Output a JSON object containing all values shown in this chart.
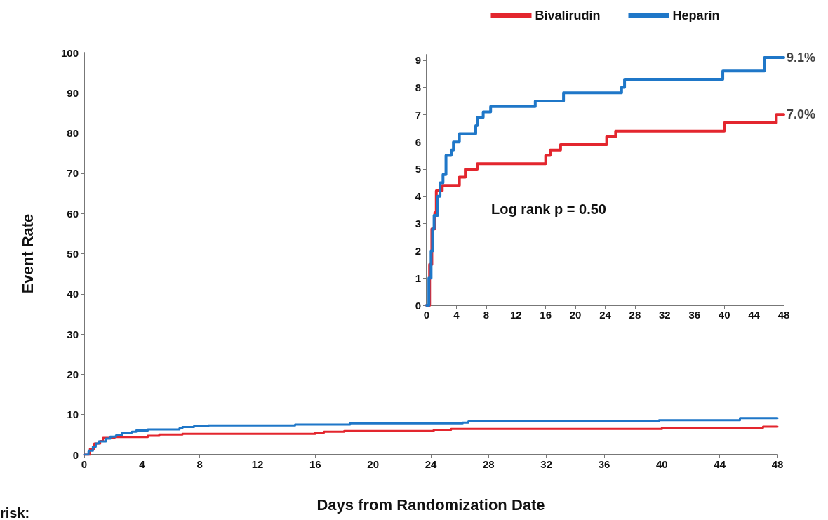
{
  "chart_data": [
    {
      "type": "step",
      "xlabel": "Days from Randomization Date",
      "ylabel": "Event Rate",
      "xlim": [
        0,
        48
      ],
      "xticks": [
        0,
        4,
        8,
        12,
        16,
        20,
        24,
        28,
        32,
        36,
        40,
        44,
        48
      ],
      "ylim": [
        0,
        100
      ],
      "yticks": [
        0,
        10,
        20,
        30,
        40,
        50,
        60,
        70,
        80,
        90,
        100
      ],
      "grid": false,
      "legend": false,
      "marker": "none",
      "line_style": "solid",
      "series": [
        {
          "color": "#e3262e",
          "x": [
            0,
            0.4,
            0.7,
            1.1,
            1.3,
            2.1,
            4.4,
            5.2,
            6.8,
            16.0,
            16.6,
            18.0,
            24.2,
            25.4,
            40.0,
            47.0,
            48
          ],
          "values": [
            0,
            1.5,
            2.8,
            3.4,
            4.2,
            4.4,
            4.7,
            5.0,
            5.2,
            5.5,
            5.7,
            5.9,
            6.2,
            6.4,
            6.7,
            7.0,
            7.0
          ]
        },
        {
          "color": "#1f77c8",
          "x": [
            0,
            0.3,
            0.6,
            0.8,
            1.0,
            1.5,
            1.8,
            2.2,
            2.6,
            3.3,
            3.6,
            4.4,
            6.6,
            6.8,
            7.6,
            8.6,
            14.6,
            18.4,
            26.2,
            26.6,
            39.8,
            45.4,
            48
          ],
          "values": [
            0,
            1,
            2,
            2.8,
            3.3,
            4,
            4.5,
            4.8,
            5.5,
            5.7,
            6.0,
            6.3,
            6.6,
            6.9,
            7.1,
            7.3,
            7.5,
            7.8,
            8.0,
            8.3,
            8.6,
            9.1,
            9.1
          ]
        }
      ],
      "annotations": [
        "risk:"
      ]
    },
    {
      "type": "step",
      "xlim": [
        0,
        48
      ],
      "xticks": [
        0,
        4,
        8,
        12,
        16,
        20,
        24,
        28,
        32,
        36,
        40,
        44,
        48
      ],
      "ylim": [
        0,
        9.2
      ],
      "yticks": [
        0,
        1,
        2,
        3,
        4,
        5,
        6,
        7,
        8,
        9
      ],
      "grid": false,
      "legend": "top",
      "marker": "none",
      "line_style": "solid",
      "series": [
        {
          "name": "Bivalirudin",
          "color": "#e3262e",
          "x": [
            0,
            0.4,
            0.7,
            1.1,
            1.3,
            2.1,
            4.4,
            5.2,
            6.8,
            16.0,
            16.6,
            18.0,
            24.2,
            25.4,
            40.0,
            47.0,
            48
          ],
          "values": [
            0,
            1.5,
            2.8,
            3.4,
            4.2,
            4.4,
            4.7,
            5.0,
            5.2,
            5.5,
            5.7,
            5.9,
            6.2,
            6.4,
            6.7,
            7.0,
            7.0
          ]
        },
        {
          "name": "Heparin",
          "color": "#1f77c8",
          "x": [
            0,
            0.3,
            0.6,
            0.8,
            1.0,
            1.5,
            1.8,
            2.2,
            2.6,
            3.3,
            3.6,
            4.4,
            6.6,
            6.8,
            7.6,
            8.6,
            14.6,
            18.4,
            26.2,
            26.6,
            39.8,
            45.4,
            48
          ],
          "values": [
            0,
            1,
            2,
            2.8,
            3.3,
            4,
            4.5,
            4.8,
            5.5,
            5.7,
            6.0,
            6.3,
            6.6,
            6.9,
            7.1,
            7.3,
            7.5,
            7.8,
            8.0,
            8.3,
            8.6,
            9.1,
            9.1
          ]
        }
      ],
      "annotations": [
        {
          "text": "9.1%",
          "x": 48,
          "y": 9.1
        },
        {
          "text": "7.0%",
          "x": 48,
          "y": 7.0
        },
        "Log rank p = 0.50"
      ]
    }
  ]
}
